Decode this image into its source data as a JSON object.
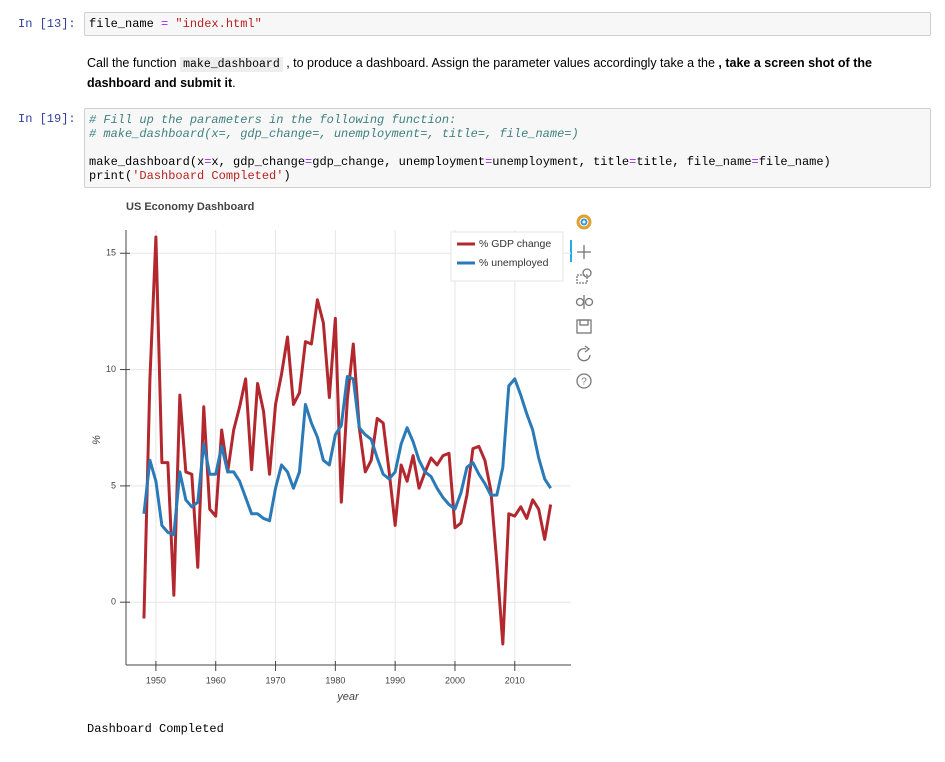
{
  "cells": [
    {
      "prompt": "In [13]:",
      "lines": [
        "file_name = \"index.html\""
      ]
    },
    {
      "prompt": "In [19]:",
      "lines": [
        "# Fill up the parameters in the following function:",
        "# make_dashboard(x=, gdp_change=, unemployment=, title=, file_name=)",
        "",
        "make_dashboard(x=x, gdp_change=gdp_change, unemployment=unemployment, title=title, file_name=file_name)",
        "print('Dashboard Completed')"
      ]
    }
  ],
  "markdown": {
    "parts": [
      "Call the function ",
      "make_dashboard",
      " , to produce a dashboard. Assign the parameter values accordingly take a the ",
      ", take a screen shot of the dashboard and submit it",
      "."
    ]
  },
  "output": "Dashboard Completed",
  "chart_data": {
    "type": "line",
    "title": "US Economy Dashboard",
    "x_label": "year",
    "y_label": "%",
    "x": [
      1948,
      1949,
      1950,
      1951,
      1952,
      1953,
      1954,
      1955,
      1956,
      1957,
      1958,
      1959,
      1960,
      1961,
      1962,
      1963,
      1964,
      1965,
      1966,
      1967,
      1968,
      1969,
      1970,
      1971,
      1972,
      1973,
      1974,
      1975,
      1976,
      1977,
      1978,
      1979,
      1980,
      1981,
      1982,
      1983,
      1984,
      1985,
      1986,
      1987,
      1988,
      1989,
      1990,
      1991,
      1992,
      1993,
      1994,
      1995,
      1996,
      1997,
      1998,
      1999,
      2000,
      2001,
      2002,
      2003,
      2004,
      2005,
      2006,
      2007,
      2008,
      2009,
      2010,
      2011,
      2012,
      2013,
      2014,
      2015,
      2016
    ],
    "series": [
      {
        "name": "% GDP change",
        "color": "#b2282e",
        "values": [
          -0.7,
          9.6,
          15.7,
          6.0,
          6.0,
          0.3,
          8.9,
          5.6,
          5.5,
          1.5,
          8.4,
          4.0,
          3.7,
          7.4,
          5.6,
          7.4,
          8.4,
          9.6,
          5.7,
          9.4,
          8.2,
          5.5,
          8.5,
          9.8,
          11.4,
          8.5,
          9.0,
          11.2,
          11.1,
          13.0,
          12.0,
          8.8,
          12.2,
          4.3,
          8.7,
          11.1,
          7.5,
          5.6,
          6.1,
          7.9,
          7.7,
          5.6,
          3.3,
          5.9,
          5.2,
          6.3,
          4.9,
          5.6,
          6.2,
          5.9,
          6.3,
          6.4,
          3.2,
          3.4,
          4.6,
          6.6,
          6.7,
          6.1,
          4.8,
          1.7,
          -1.8,
          3.8,
          3.7,
          4.1,
          3.6,
          4.4,
          4.0,
          2.7,
          4.2
        ]
      },
      {
        "name": "% unemployed",
        "color": "#2a7ab8",
        "values": [
          3.8,
          6.1,
          5.2,
          3.3,
          3.0,
          2.9,
          5.6,
          4.4,
          4.1,
          4.3,
          6.8,
          5.5,
          5.5,
          6.7,
          5.6,
          5.6,
          5.2,
          4.5,
          3.8,
          3.8,
          3.6,
          3.5,
          4.9,
          5.9,
          5.6,
          4.9,
          5.6,
          8.5,
          7.7,
          7.1,
          6.1,
          5.9,
          7.2,
          7.6,
          9.7,
          9.6,
          7.5,
          7.2,
          7.0,
          6.2,
          5.5,
          5.3,
          5.6,
          6.8,
          7.5,
          6.9,
          6.1,
          5.6,
          5.4,
          4.9,
          4.5,
          4.2,
          4.0,
          4.7,
          5.8,
          6.0,
          5.5,
          5.1,
          4.6,
          4.6,
          5.8,
          9.3,
          9.6,
          8.9,
          8.1,
          7.4,
          6.2,
          5.3,
          4.9
        ]
      }
    ],
    "xlim": [
      1945,
      2019.4
    ],
    "ylim": [
      -2.7,
      16
    ],
    "xticks": [
      1950,
      1960,
      1970,
      1980,
      1990,
      2000,
      2010
    ],
    "yticks": [
      0,
      5,
      10,
      15
    ],
    "grid": true,
    "legend": "top-right"
  }
}
